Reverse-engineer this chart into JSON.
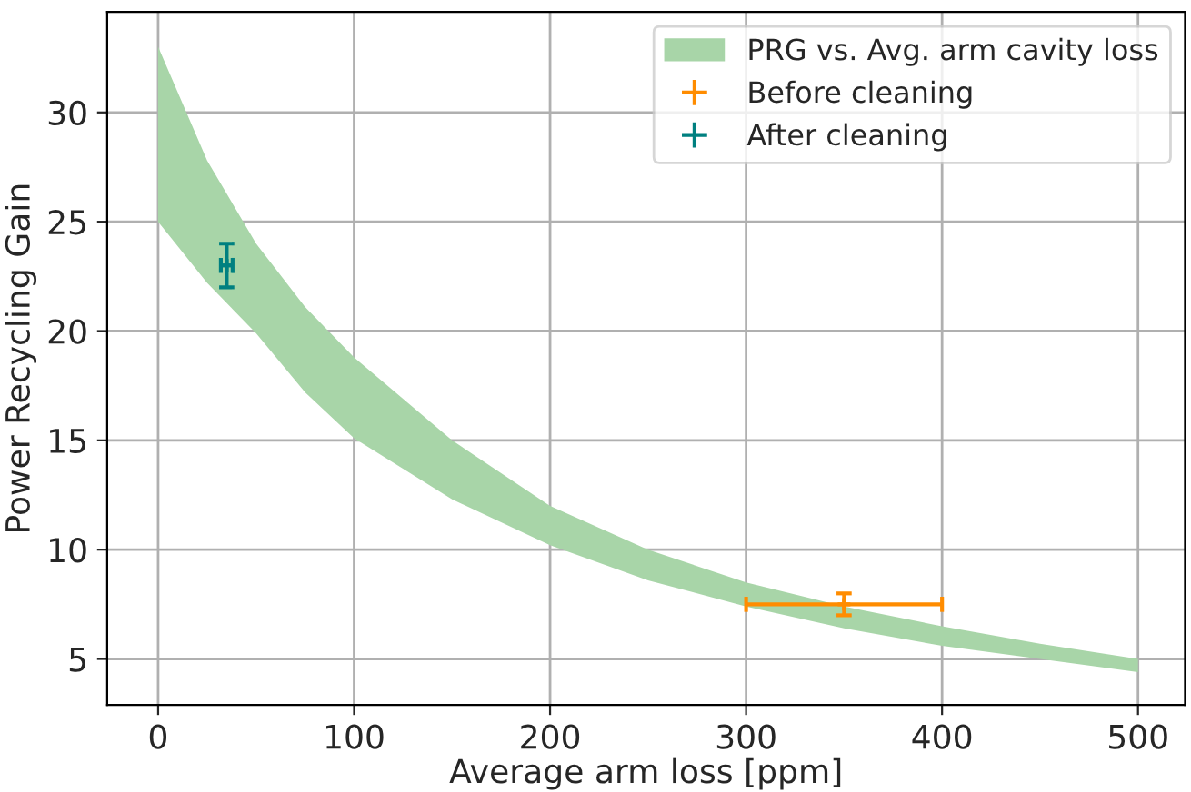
{
  "chart_data": {
    "type": "area",
    "xlabel": "Average arm loss [ppm]",
    "ylabel": "Power Recycling Gain",
    "xlim": [
      -26,
      524
    ],
    "ylim": [
      2.9,
      34.6
    ],
    "xticks": [
      0,
      100,
      200,
      300,
      400,
      500
    ],
    "yticks": [
      5,
      10,
      15,
      20,
      25,
      30
    ],
    "grid": true,
    "legend": "top right",
    "series": [
      {
        "name": "PRG vs. Avg. arm cavity loss",
        "color": "#a8d5a8",
        "x": [
          0,
          25,
          50,
          75,
          100,
          150,
          200,
          250,
          300,
          350,
          400,
          450,
          500
        ],
        "lower": [
          25,
          22.2,
          19.9,
          17.2,
          15.1,
          12.3,
          10.2,
          8.6,
          7.4,
          6.4,
          5.6,
          5.0,
          4.4
        ],
        "upper": [
          33,
          27.8,
          24.0,
          21.1,
          18.8,
          15.0,
          12.0,
          10.0,
          8.5,
          7.4,
          6.5,
          5.7,
          5.0
        ],
        "values": [
          null,
          null,
          null,
          null,
          null,
          null,
          null,
          null,
          null,
          null,
          null,
          null,
          null
        ]
      },
      {
        "type": "scatter",
        "name": "Before cleaning",
        "color": "#ff8c00",
        "x": [
          350
        ],
        "values": [
          7.5
        ],
        "errors": [
          0.5
        ],
        "xerrors": [
          50
        ]
      },
      {
        "type": "scatter",
        "name": "After cleaning",
        "color": "#008080",
        "x": [
          35
        ],
        "values": [
          23
        ],
        "errors": [
          1
        ],
        "xerrors": [
          3
        ]
      }
    ]
  }
}
